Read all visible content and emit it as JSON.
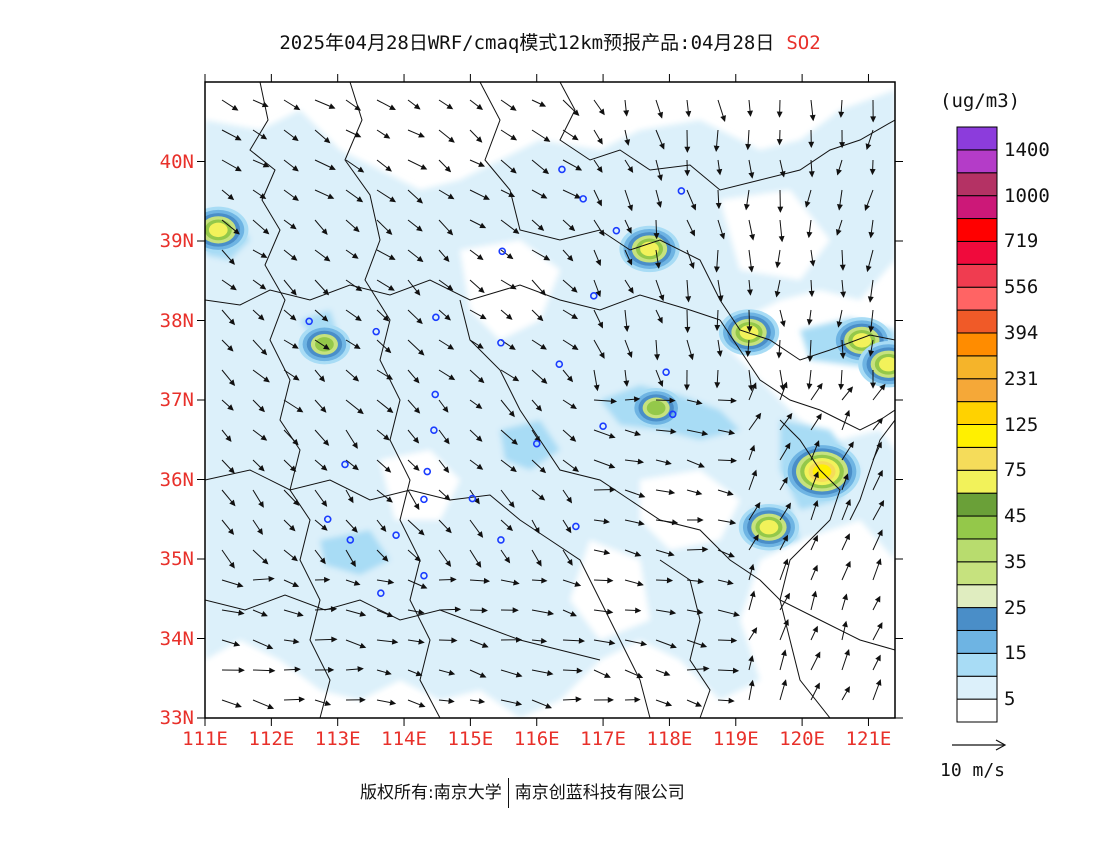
{
  "title": {
    "main": "2025年04月28日WRF/cmaq模式12km预报产品:04月28日",
    "pollutant": "SO2",
    "pollutant_color": "#e8302a"
  },
  "axes": {
    "label_color": "#e8302a",
    "lat_labels": [
      "40N",
      "39N",
      "38N",
      "37N",
      "36N",
      "35N",
      "34N",
      "33N"
    ],
    "lat_values": [
      40,
      39,
      38,
      37,
      36,
      35,
      34,
      33
    ],
    "lon_labels": [
      "111E",
      "112E",
      "113E",
      "114E",
      "115E",
      "116E",
      "117E",
      "118E",
      "119E",
      "120E",
      "121E"
    ],
    "lon_values": [
      111,
      112,
      113,
      114,
      115,
      116,
      117,
      118,
      119,
      120,
      121
    ],
    "lon_range": [
      111,
      121.4
    ],
    "lat_range": [
      33,
      41
    ]
  },
  "legend": {
    "unit": "(ug/m3)",
    "colors_bottom_to_top": [
      "#ffffff",
      "#dcf0fa",
      "#a8dcf5",
      "#6eb4e3",
      "#4a8ec8",
      "#e0edc0",
      "#c6e27e",
      "#b8dc6e",
      "#94c84a",
      "#6aa038",
      "#f2f25a",
      "#f5dc5a",
      "#fff000",
      "#ffd200",
      "#f5a838",
      "#f5b42a",
      "#ff8c00",
      "#f05a28",
      "#ff6464",
      "#f03c50",
      "#f00a3c",
      "#ff0000",
      "#cc1878",
      "#b43264",
      "#b43cc8",
      "#8c3cdc"
    ],
    "labels_bottom_to_top": [
      "5",
      "15",
      "25",
      "35",
      "45",
      "75",
      "125",
      "231",
      "394",
      "556",
      "719",
      "1000",
      "1400"
    ]
  },
  "wind_reference": {
    "label": "10 m/s"
  },
  "copyright": {
    "left": "版权所有:南京大学",
    "right": "南京创蓝科技有限公司"
  },
  "cities": [
    {
      "lon": 112.57,
      "lat": 37.99
    },
    {
      "lon": 113.58,
      "lat": 37.86
    },
    {
      "lon": 114.48,
      "lat": 38.04
    },
    {
      "lon": 115.48,
      "lat": 38.87
    },
    {
      "lon": 115.46,
      "lat": 37.72
    },
    {
      "lon": 116.38,
      "lat": 39.9
    },
    {
      "lon": 116.7,
      "lat": 39.53
    },
    {
      "lon": 117.2,
      "lat": 39.13
    },
    {
      "lon": 118.18,
      "lat": 39.63
    },
    {
      "lon": 116.86,
      "lat": 38.31
    },
    {
      "lon": 116.34,
      "lat": 37.45
    },
    {
      "lon": 114.47,
      "lat": 37.07
    },
    {
      "lon": 114.45,
      "lat": 36.62
    },
    {
      "lon": 113.11,
      "lat": 36.19
    },
    {
      "lon": 114.35,
      "lat": 36.1
    },
    {
      "lon": 114.3,
      "lat": 35.75
    },
    {
      "lon": 115.03,
      "lat": 35.76
    },
    {
      "lon": 113.88,
      "lat": 35.3
    },
    {
      "lon": 112.85,
      "lat": 35.5
    },
    {
      "lon": 113.19,
      "lat": 35.24
    },
    {
      "lon": 115.46,
      "lat": 35.24
    },
    {
      "lon": 114.3,
      "lat": 34.79
    },
    {
      "lon": 113.65,
      "lat": 34.57
    },
    {
      "lon": 116.0,
      "lat": 36.45
    },
    {
      "lon": 117.0,
      "lat": 36.67
    },
    {
      "lon": 117.95,
      "lat": 37.35
    },
    {
      "lon": 118.05,
      "lat": 36.82
    },
    {
      "lon": 116.59,
      "lat": 35.41
    }
  ],
  "hotspots": [
    {
      "lon": 111.2,
      "lat": 39.14,
      "level": 6
    },
    {
      "lon": 112.8,
      "lat": 37.7,
      "level": 5
    },
    {
      "lon": 117.8,
      "lat": 36.9,
      "level": 5
    },
    {
      "lon": 119.2,
      "lat": 37.85,
      "level": 6
    },
    {
      "lon": 120.9,
      "lat": 37.75,
      "level": 6
    },
    {
      "lon": 121.3,
      "lat": 37.45,
      "level": 6
    },
    {
      "lon": 120.3,
      "lat": 36.1,
      "level": 10
    },
    {
      "lon": 119.5,
      "lat": 35.4,
      "level": 6
    },
    {
      "lon": 117.7,
      "lat": 38.9,
      "level": 6
    }
  ]
}
